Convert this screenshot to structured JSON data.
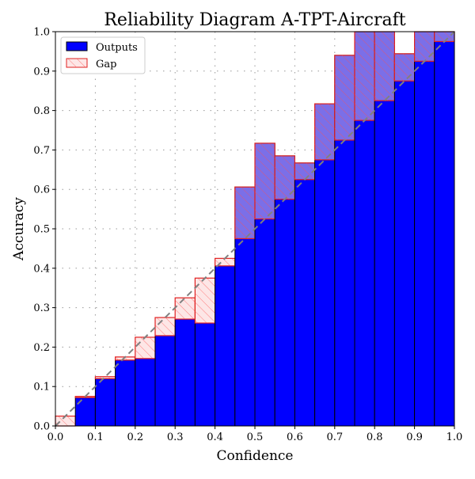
{
  "chart_data": {
    "type": "bar",
    "title": "Reliability Diagram A-TPT-Aircraft",
    "xlabel": "Confidence",
    "ylabel": "Accuracy",
    "xlim": [
      0,
      1
    ],
    "ylim": [
      0,
      1
    ],
    "grid": true,
    "legend_position": "top-left",
    "legend": [
      "Outputs",
      "Gap"
    ],
    "xticks": [
      "0.0",
      "0.1",
      "0.2",
      "0.3",
      "0.4",
      "0.5",
      "0.6",
      "0.7",
      "0.8",
      "0.9",
      "1.0"
    ],
    "yticks": [
      "0.0",
      "0.1",
      "0.2",
      "0.3",
      "0.4",
      "0.5",
      "0.6",
      "0.7",
      "0.8",
      "0.9",
      "1.0"
    ],
    "bin_width": 0.05,
    "bin_centers": [
      0.025,
      0.075,
      0.125,
      0.175,
      0.225,
      0.275,
      0.325,
      0.375,
      0.425,
      0.475,
      0.525,
      0.575,
      0.625,
      0.675,
      0.725,
      0.775,
      0.825,
      0.875,
      0.925,
      0.975
    ],
    "outputs": [
      0.0,
      0.072,
      0.12,
      0.167,
      0.171,
      0.229,
      0.271,
      0.261,
      0.406,
      0.606,
      0.717,
      0.685,
      0.667,
      0.817,
      0.94,
      1.0,
      1.0,
      0.944,
      1.0,
      1.0
    ],
    "colors": {
      "outputs": "#0000ff",
      "gap_edge": "#e02020",
      "gap_under": "#fde6e6",
      "gap_over": "#7b6fe8",
      "diagonal": "#808080"
    }
  }
}
